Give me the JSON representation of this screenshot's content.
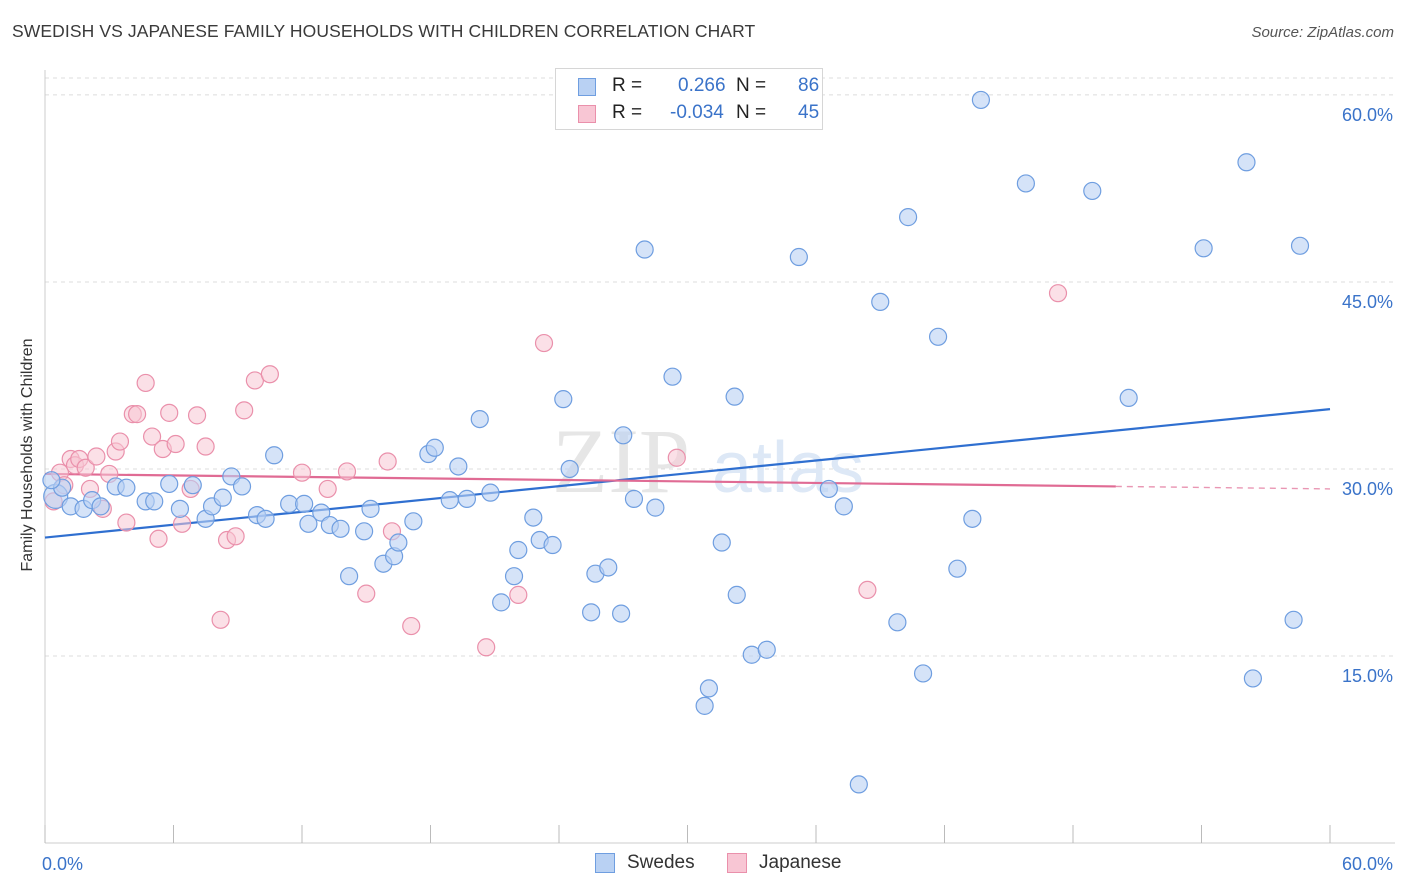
{
  "header": {
    "title": "SWEDISH VS JAPANESE FAMILY HOUSEHOLDS WITH CHILDREN CORRELATION CHART",
    "source": "Source: ZipAtlas.com"
  },
  "watermark": {
    "text_zip": "ZIP",
    "text_atlas": "atlas"
  },
  "legend": {
    "r_label": "R =",
    "n_label": "N =",
    "swedes": {
      "r": "0.266",
      "n": "86"
    },
    "japanese": {
      "r": "-0.034",
      "n": "45"
    }
  },
  "colors": {
    "swedes_fill": "#b9d1f3",
    "swedes_stroke": "#6f9ee0",
    "swedes_line": "#2f6fd0",
    "japanese_fill": "#f8c6d4",
    "japanese_stroke": "#ea90ab",
    "japanese_line": "#e06b94",
    "tick_text": "#3a73c9",
    "grid": "#dcdcdc"
  },
  "chart_data": {
    "type": "scatter",
    "title": "SWEDISH VS JAPANESE FAMILY HOUSEHOLDS WITH CHILDREN CORRELATION CHART",
    "ylabel": "Family Households with Children",
    "xlim": [
      0,
      60
    ],
    "ylim": [
      0,
      62
    ],
    "x_tick_labels": [
      "0.0%",
      "60.0%"
    ],
    "y_ticks": [
      15,
      30,
      45,
      60
    ],
    "y_tick_labels": [
      "15.0%",
      "30.0%",
      "45.0%",
      "60.0%"
    ],
    "grid": true,
    "legend_position": "top-center",
    "series": [
      {
        "name": "Swedes",
        "r": 0.266,
        "n": 86,
        "trend": {
          "x": [
            0,
            60
          ],
          "y": [
            24.5,
            34.8
          ]
        },
        "points": [
          [
            0.5,
            27.8
          ],
          [
            0.8,
            28.5
          ],
          [
            1.2,
            27.0
          ],
          [
            1.8,
            26.8
          ],
          [
            2.2,
            27.5
          ],
          [
            2.6,
            27.0
          ],
          [
            3.3,
            28.6
          ],
          [
            3.8,
            28.5
          ],
          [
            4.7,
            27.4
          ],
          [
            5.1,
            27.4
          ],
          [
            5.8,
            28.8
          ],
          [
            6.3,
            26.8
          ],
          [
            6.9,
            28.7
          ],
          [
            7.5,
            26.0
          ],
          [
            7.8,
            27.0
          ],
          [
            8.3,
            27.7
          ],
          [
            8.7,
            29.4
          ],
          [
            9.2,
            28.6
          ],
          [
            9.9,
            26.3
          ],
          [
            10.3,
            26.0
          ],
          [
            10.7,
            31.1
          ],
          [
            11.4,
            27.2
          ],
          [
            12.1,
            27.2
          ],
          [
            12.3,
            25.6
          ],
          [
            12.9,
            26.5
          ],
          [
            13.3,
            25.5
          ],
          [
            13.8,
            25.2
          ],
          [
            14.2,
            21.4
          ],
          [
            14.9,
            25.0
          ],
          [
            15.2,
            26.8
          ],
          [
            15.8,
            22.4
          ],
          [
            16.3,
            23.0
          ],
          [
            16.5,
            24.1
          ],
          [
            17.2,
            25.8
          ],
          [
            17.9,
            31.2
          ],
          [
            18.2,
            31.7
          ],
          [
            18.9,
            27.5
          ],
          [
            19.3,
            30.2
          ],
          [
            19.7,
            27.6
          ],
          [
            20.3,
            34.0
          ],
          [
            20.8,
            28.1
          ],
          [
            21.3,
            19.3
          ],
          [
            21.9,
            21.4
          ],
          [
            22.1,
            23.5
          ],
          [
            22.8,
            26.1
          ],
          [
            23.1,
            24.3
          ],
          [
            23.7,
            23.9
          ],
          [
            24.2,
            35.6
          ],
          [
            24.5,
            30.0
          ],
          [
            25.5,
            18.5
          ],
          [
            25.7,
            21.6
          ],
          [
            26.3,
            22.1
          ],
          [
            26.9,
            18.4
          ],
          [
            27.0,
            32.7
          ],
          [
            27.5,
            27.6
          ],
          [
            28.0,
            47.6
          ],
          [
            28.5,
            26.9
          ],
          [
            29.3,
            37.4
          ],
          [
            30.8,
            11.0
          ],
          [
            31.0,
            12.4
          ],
          [
            31.6,
            24.1
          ],
          [
            32.2,
            35.8
          ],
          [
            32.3,
            19.9
          ],
          [
            33.0,
            15.1
          ],
          [
            33.7,
            15.5
          ],
          [
            35.2,
            47.0
          ],
          [
            36.6,
            28.4
          ],
          [
            37.3,
            27.0
          ],
          [
            38.0,
            4.7
          ],
          [
            39.0,
            43.4
          ],
          [
            39.8,
            17.7
          ],
          [
            40.3,
            50.2
          ],
          [
            41.0,
            13.6
          ],
          [
            41.7,
            40.6
          ],
          [
            42.6,
            22.0
          ],
          [
            43.3,
            26.0
          ],
          [
            43.7,
            59.6
          ],
          [
            45.8,
            52.9
          ],
          [
            48.9,
            52.3
          ],
          [
            50.6,
            35.7
          ],
          [
            54.1,
            47.7
          ],
          [
            56.1,
            54.6
          ],
          [
            56.4,
            13.2
          ],
          [
            58.3,
            17.9
          ],
          [
            58.6,
            47.9
          ],
          [
            0.3,
            29.1
          ]
        ]
      },
      {
        "name": "Japanese",
        "r": -0.034,
        "n": 45,
        "trend": {
          "x": [
            0,
            50
          ],
          "y": [
            29.6,
            28.6
          ],
          "dashed_to_x": 60
        },
        "points": [
          [
            0.4,
            27.4
          ],
          [
            0.7,
            29.7
          ],
          [
            0.9,
            28.7
          ],
          [
            1.2,
            30.8
          ],
          [
            1.4,
            30.3
          ],
          [
            1.6,
            30.8
          ],
          [
            1.9,
            30.1
          ],
          [
            2.1,
            28.4
          ],
          [
            2.4,
            31.0
          ],
          [
            2.7,
            26.8
          ],
          [
            3.0,
            29.6
          ],
          [
            3.3,
            31.4
          ],
          [
            3.5,
            32.2
          ],
          [
            3.8,
            25.7
          ],
          [
            4.1,
            34.4
          ],
          [
            4.3,
            34.4
          ],
          [
            4.7,
            36.9
          ],
          [
            5.0,
            32.6
          ],
          [
            5.3,
            24.4
          ],
          [
            5.5,
            31.6
          ],
          [
            5.8,
            34.5
          ],
          [
            6.1,
            32.0
          ],
          [
            6.4,
            25.6
          ],
          [
            6.8,
            28.4
          ],
          [
            7.1,
            34.3
          ],
          [
            7.5,
            31.8
          ],
          [
            8.2,
            17.9
          ],
          [
            8.5,
            24.3
          ],
          [
            8.9,
            24.6
          ],
          [
            9.3,
            34.7
          ],
          [
            9.8,
            37.1
          ],
          [
            10.5,
            37.6
          ],
          [
            12.0,
            29.7
          ],
          [
            13.2,
            28.4
          ],
          [
            14.1,
            29.8
          ],
          [
            15.0,
            20.0
          ],
          [
            16.0,
            30.6
          ],
          [
            16.2,
            25.0
          ],
          [
            17.1,
            17.4
          ],
          [
            20.6,
            15.7
          ],
          [
            22.1,
            19.9
          ],
          [
            23.3,
            40.1
          ],
          [
            29.5,
            30.9
          ],
          [
            38.4,
            20.3
          ],
          [
            47.3,
            44.1
          ]
        ]
      }
    ]
  },
  "bottom_legend": {
    "swedes": "Swedes",
    "japanese": "Japanese"
  }
}
